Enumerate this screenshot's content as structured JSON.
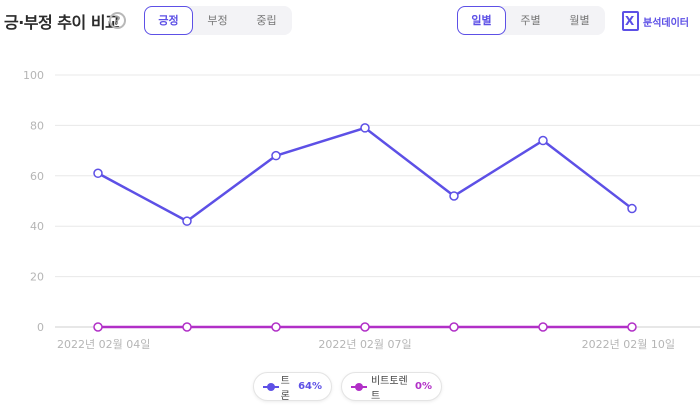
{
  "header": {
    "title": "긍·부정 추이 비교",
    "help_glyph": "?",
    "sentiment_tabs": [
      {
        "label": "긍정",
        "active": true
      },
      {
        "label": "부정",
        "active": false
      },
      {
        "label": "중립",
        "active": false
      }
    ],
    "period_tabs": [
      {
        "label": "일별",
        "active": true
      },
      {
        "label": "주별",
        "active": false
      },
      {
        "label": "월별",
        "active": false
      }
    ],
    "export_label": "분석데이터",
    "export_icon": "excel-icon"
  },
  "legend": [
    {
      "name": "트론",
      "percent": "64%",
      "color": "#5d50e6"
    },
    {
      "name": "비트토렌트",
      "percent": "0%",
      "color": "#b12fc7"
    }
  ],
  "chart_data": {
    "type": "line",
    "x": [
      "2022년 02월 04일",
      "2022년 02월 05일",
      "2022년 02월 06일",
      "2022년 02월 07일",
      "2022년 02월 08일",
      "2022년 02월 09일",
      "2022년 02월 10일"
    ],
    "x_tick_labels": [
      "2022년 02월 04일",
      "2022년 02월 07일",
      "2022년 02월 10일"
    ],
    "series": [
      {
        "name": "트론",
        "values": [
          61,
          42,
          68,
          79,
          52,
          74,
          47
        ],
        "color": "#5d50e6"
      },
      {
        "name": "비트토렌트",
        "values": [
          0,
          0,
          0,
          0,
          0,
          0,
          0
        ],
        "color": "#b12fc7"
      }
    ],
    "ylim": [
      0,
      100
    ],
    "y_ticks": [
      0,
      20,
      40,
      60,
      80,
      100
    ],
    "grid": true,
    "legend_position": "bottom-center"
  }
}
